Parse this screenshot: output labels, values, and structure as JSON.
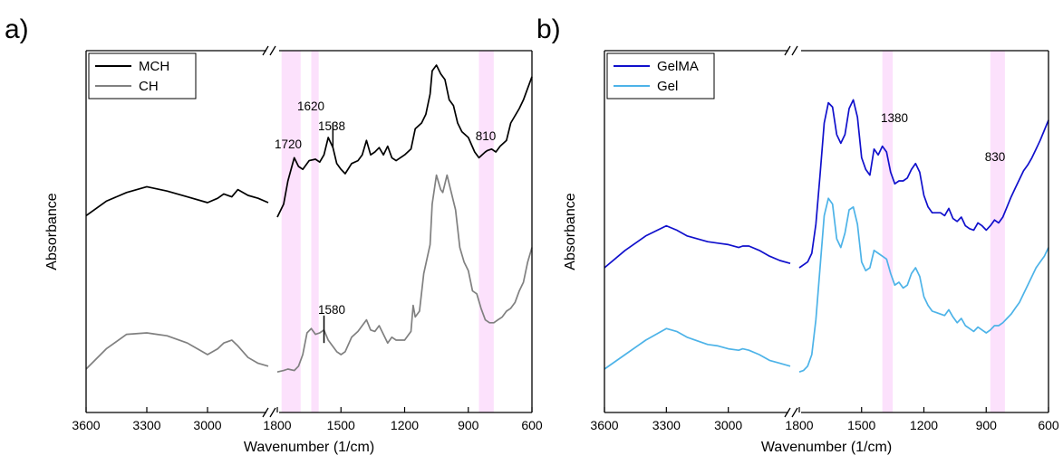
{
  "chart_data": [
    {
      "panel_label": "a)",
      "type": "line",
      "xlabel": "Wavenumber (1/cm)",
      "ylabel": "Absorbance",
      "x_ticks": [
        "3600",
        "3300",
        "3000",
        "1800",
        "1500",
        "1200",
        "900",
        "600"
      ],
      "axis_break_after": 2700,
      "legend": {
        "placement": "top-left",
        "entries": [
          "MCH",
          "CH"
        ]
      },
      "highlight_bands": [
        [
          1780,
          1690
        ],
        [
          1640,
          1605
        ],
        [
          850,
          780
        ]
      ],
      "annotations": [
        {
          "text": "1720",
          "x": 1720,
          "series": "MCH"
        },
        {
          "text": "1620",
          "x": 1620,
          "series": "MCH"
        },
        {
          "text": "1538",
          "x": 1538,
          "series": "MCH"
        },
        {
          "text": "810",
          "x": 810,
          "series": "MCH"
        },
        {
          "text": "1580",
          "x": 1580,
          "series": "CH"
        }
      ],
      "series": [
        {
          "name": "MCH",
          "color": "#000000",
          "x": [
            3600,
            3500,
            3400,
            3300,
            3200,
            3100,
            3000,
            2950,
            2920,
            2880,
            2850,
            2800,
            2750,
            2700,
            1800,
            1770,
            1750,
            1720,
            1700,
            1680,
            1650,
            1620,
            1600,
            1580,
            1560,
            1538,
            1520,
            1500,
            1480,
            1450,
            1420,
            1400,
            1380,
            1360,
            1340,
            1320,
            1300,
            1280,
            1260,
            1240,
            1200,
            1170,
            1150,
            1120,
            1100,
            1080,
            1070,
            1050,
            1030,
            1010,
            990,
            970,
            950,
            930,
            900,
            870,
            850,
            820,
            810,
            790,
            770,
            750,
            720,
            700,
            680,
            660,
            640,
            620,
            600
          ],
          "y": [
            0.58,
            0.63,
            0.66,
            0.68,
            0.665,
            0.645,
            0.625,
            0.64,
            0.655,
            0.645,
            0.67,
            0.65,
            0.64,
            0.625,
            0.575,
            0.62,
            0.7,
            0.78,
            0.75,
            0.74,
            0.77,
            0.775,
            0.765,
            0.79,
            0.85,
            0.815,
            0.76,
            0.74,
            0.725,
            0.76,
            0.77,
            0.79,
            0.84,
            0.79,
            0.8,
            0.815,
            0.79,
            0.82,
            0.78,
            0.77,
            0.79,
            0.81,
            0.88,
            0.9,
            0.93,
            1.0,
            1.08,
            1.1,
            1.07,
            1.05,
            0.98,
            0.96,
            0.9,
            0.87,
            0.85,
            0.8,
            0.78,
            0.8,
            0.805,
            0.81,
            0.8,
            0.82,
            0.84,
            0.9,
            0.925,
            0.95,
            0.98,
            1.02,
            1.06
          ]
        },
        {
          "name": "CH",
          "color": "#808080",
          "x": [
            3600,
            3500,
            3400,
            3300,
            3250,
            3200,
            3100,
            3000,
            2950,
            2920,
            2880,
            2850,
            2800,
            2750,
            2700,
            1800,
            1770,
            1750,
            1720,
            1700,
            1680,
            1660,
            1640,
            1620,
            1600,
            1580,
            1560,
            1540,
            1520,
            1500,
            1480,
            1450,
            1420,
            1400,
            1380,
            1360,
            1340,
            1320,
            1300,
            1280,
            1260,
            1240,
            1200,
            1170,
            1160,
            1150,
            1130,
            1110,
            1080,
            1070,
            1050,
            1030,
            1020,
            1000,
            980,
            960,
            940,
            920,
            900,
            880,
            860,
            840,
            820,
            800,
            780,
            760,
            740,
            720,
            700,
            680,
            660,
            640,
            620,
            600
          ],
          "y": [
            0.05,
            0.12,
            0.17,
            0.175,
            0.17,
            0.165,
            0.14,
            0.1,
            0.12,
            0.14,
            0.15,
            0.13,
            0.09,
            0.07,
            0.06,
            0.04,
            0.045,
            0.05,
            0.045,
            0.06,
            0.1,
            0.175,
            0.19,
            0.17,
            0.175,
            0.185,
            0.15,
            0.13,
            0.11,
            0.1,
            0.11,
            0.16,
            0.18,
            0.2,
            0.22,
            0.185,
            0.18,
            0.2,
            0.17,
            0.14,
            0.16,
            0.15,
            0.15,
            0.18,
            0.27,
            0.23,
            0.25,
            0.38,
            0.48,
            0.62,
            0.72,
            0.67,
            0.66,
            0.72,
            0.66,
            0.6,
            0.47,
            0.42,
            0.39,
            0.32,
            0.31,
            0.26,
            0.22,
            0.21,
            0.21,
            0.22,
            0.23,
            0.25,
            0.26,
            0.28,
            0.32,
            0.35,
            0.42,
            0.47
          ]
        }
      ]
    },
    {
      "panel_label": "b)",
      "type": "line",
      "xlabel": "Wavenumber (1/cm)",
      "ylabel": "Absorbance",
      "x_ticks": [
        "3600",
        "3300",
        "3000",
        "1800",
        "1500",
        "1200",
        "900",
        "600"
      ],
      "axis_break_after": 2700,
      "legend": {
        "placement": "top-left",
        "entries": [
          "GelMA",
          "Gel"
        ]
      },
      "highlight_bands": [
        [
          1400,
          1350
        ],
        [
          880,
          810
        ]
      ],
      "annotations": [
        {
          "text": "1380",
          "x": 1380,
          "series": "GelMA"
        },
        {
          "text": "830",
          "x": 830,
          "series": "GelMA"
        }
      ],
      "series": [
        {
          "name": "GelMA",
          "color": "#1010cc",
          "x": [
            3600,
            3500,
            3400,
            3300,
            3250,
            3200,
            3100,
            3050,
            3000,
            2950,
            2930,
            2900,
            2850,
            2800,
            2750,
            2700,
            1800,
            1780,
            1760,
            1740,
            1720,
            1700,
            1680,
            1660,
            1640,
            1620,
            1600,
            1580,
            1560,
            1540,
            1520,
            1500,
            1480,
            1460,
            1440,
            1420,
            1400,
            1380,
            1360,
            1340,
            1320,
            1300,
            1280,
            1260,
            1240,
            1220,
            1200,
            1180,
            1160,
            1140,
            1120,
            1100,
            1080,
            1060,
            1040,
            1020,
            1000,
            980,
            960,
            940,
            920,
            900,
            880,
            860,
            840,
            820,
            800,
            780,
            760,
            740,
            720,
            700,
            680,
            660,
            640,
            620,
            600
          ],
          "y": [
            0.4,
            0.46,
            0.51,
            0.545,
            0.53,
            0.51,
            0.49,
            0.485,
            0.48,
            0.47,
            0.475,
            0.475,
            0.46,
            0.44,
            0.425,
            0.415,
            0.4,
            0.41,
            0.42,
            0.45,
            0.55,
            0.72,
            0.9,
            0.97,
            0.955,
            0.86,
            0.83,
            0.86,
            0.95,
            0.98,
            0.92,
            0.78,
            0.74,
            0.72,
            0.81,
            0.79,
            0.82,
            0.8,
            0.73,
            0.69,
            0.7,
            0.7,
            0.71,
            0.74,
            0.76,
            0.73,
            0.65,
            0.61,
            0.59,
            0.59,
            0.59,
            0.58,
            0.605,
            0.57,
            0.56,
            0.575,
            0.545,
            0.535,
            0.53,
            0.555,
            0.545,
            0.53,
            0.545,
            0.565,
            0.555,
            0.575,
            0.61,
            0.645,
            0.675,
            0.705,
            0.735,
            0.755,
            0.78,
            0.81,
            0.84,
            0.875,
            0.91
          ]
        },
        {
          "name": "Gel",
          "color": "#4db3e8",
          "x": [
            3600,
            3500,
            3400,
            3300,
            3250,
            3200,
            3100,
            3050,
            3000,
            2950,
            2930,
            2900,
            2850,
            2800,
            2750,
            2700,
            1800,
            1780,
            1760,
            1740,
            1720,
            1700,
            1680,
            1660,
            1640,
            1620,
            1600,
            1580,
            1560,
            1540,
            1520,
            1500,
            1480,
            1460,
            1440,
            1420,
            1400,
            1380,
            1360,
            1340,
            1320,
            1300,
            1280,
            1260,
            1240,
            1220,
            1200,
            1180,
            1160,
            1140,
            1120,
            1100,
            1080,
            1060,
            1040,
            1020,
            1000,
            980,
            960,
            940,
            920,
            900,
            880,
            860,
            840,
            820,
            800,
            780,
            760,
            740,
            720,
            700,
            680,
            660,
            640,
            620,
            600
          ],
          "y": [
            0.05,
            0.1,
            0.15,
            0.19,
            0.18,
            0.16,
            0.135,
            0.13,
            0.12,
            0.115,
            0.12,
            0.115,
            0.1,
            0.08,
            0.07,
            0.06,
            0.04,
            0.045,
            0.06,
            0.1,
            0.22,
            0.4,
            0.58,
            0.64,
            0.62,
            0.5,
            0.47,
            0.52,
            0.6,
            0.61,
            0.55,
            0.42,
            0.39,
            0.4,
            0.46,
            0.45,
            0.44,
            0.43,
            0.38,
            0.34,
            0.35,
            0.33,
            0.34,
            0.38,
            0.4,
            0.37,
            0.3,
            0.27,
            0.25,
            0.245,
            0.24,
            0.235,
            0.255,
            0.23,
            0.21,
            0.225,
            0.2,
            0.19,
            0.18,
            0.195,
            0.185,
            0.175,
            0.185,
            0.2,
            0.2,
            0.21,
            0.225,
            0.24,
            0.26,
            0.28,
            0.31,
            0.34,
            0.37,
            0.4,
            0.42,
            0.44,
            0.47
          ]
        }
      ]
    }
  ]
}
